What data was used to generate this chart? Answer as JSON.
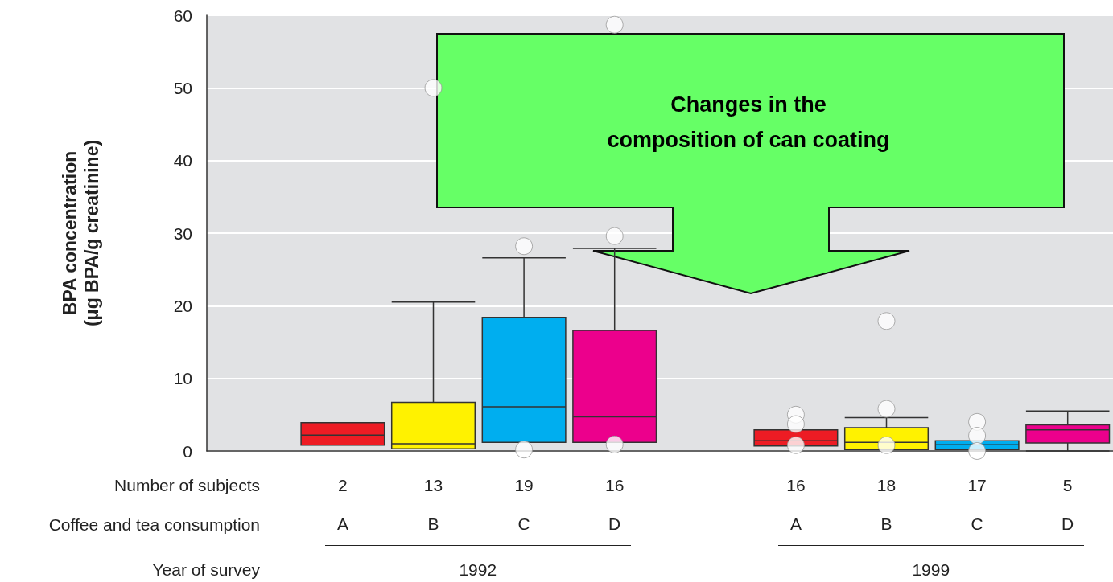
{
  "chart_data": {
    "type": "box",
    "ylabel": "BPA concentration\n(μg BPA/g creatinine)",
    "xlabel": "Coffee and tea consumption",
    "categories": [
      null,
      "A",
      "B",
      "C",
      "D",
      null,
      "A",
      "B",
      "C",
      "D"
    ],
    "series": [
      {
        "colors": [
          null,
          "#ed1c24",
          "#fff200",
          "#00aeef",
          "#ec008c",
          null,
          "#ed1c24",
          "#fff200",
          "#00aeef",
          "#ec008c"
        ],
        "boxes": [
          null,
          {
            "low": 0.8,
            "q1": 0.8,
            "median": 2.2,
            "q3": 3.9,
            "high": 3.9
          },
          {
            "low": 0.3,
            "q1": 0.3,
            "median": 1.0,
            "q3": 6.7,
            "high": 20.5,
            "outliers": [
              50
            ]
          },
          {
            "low": 1.2,
            "q1": 1.2,
            "median": 6.1,
            "q3": 18.4,
            "high": 26.6,
            "outliers": [
              28.2,
              0.2
            ]
          },
          {
            "low": 1.2,
            "q1": 1.2,
            "median": 4.7,
            "q3": 16.6,
            "high": 27.9,
            "outliers": [
              58.7,
              29.6,
              0.9
            ]
          },
          null,
          {
            "low": 0.7,
            "q1": 0.7,
            "median": 1.4,
            "q3": 2.9,
            "high": 2.9,
            "outliers": [
              5.0,
              3.7,
              0.8
            ]
          },
          {
            "low": 0.2,
            "q1": 0.2,
            "median": 1.2,
            "q3": 3.2,
            "high": 4.6,
            "outliers": [
              17.9,
              5.8,
              0.8
            ]
          },
          {
            "low": 0.2,
            "q1": 0.2,
            "median": 0.85,
            "q3": 1.4,
            "high": 1.4,
            "outliers": [
              4.0,
              2.1,
              0.0
            ]
          },
          {
            "low": 0.0,
            "q1": 1.1,
            "median": 2.9,
            "q3": 3.6,
            "high": 5.5
          }
        ]
      }
    ],
    "ylim": [
      0,
      60
    ],
    "yticks": [
      0,
      10,
      20,
      30,
      40,
      50,
      60
    ],
    "grid": "y",
    "annotations": [
      "Changes in the\ncomposition of can coating",
      "Number of subjects",
      "2",
      "13",
      "19",
      "16",
      "16",
      "18",
      "17",
      "5",
      "Year of survey",
      "1992",
      "1999"
    ]
  }
}
